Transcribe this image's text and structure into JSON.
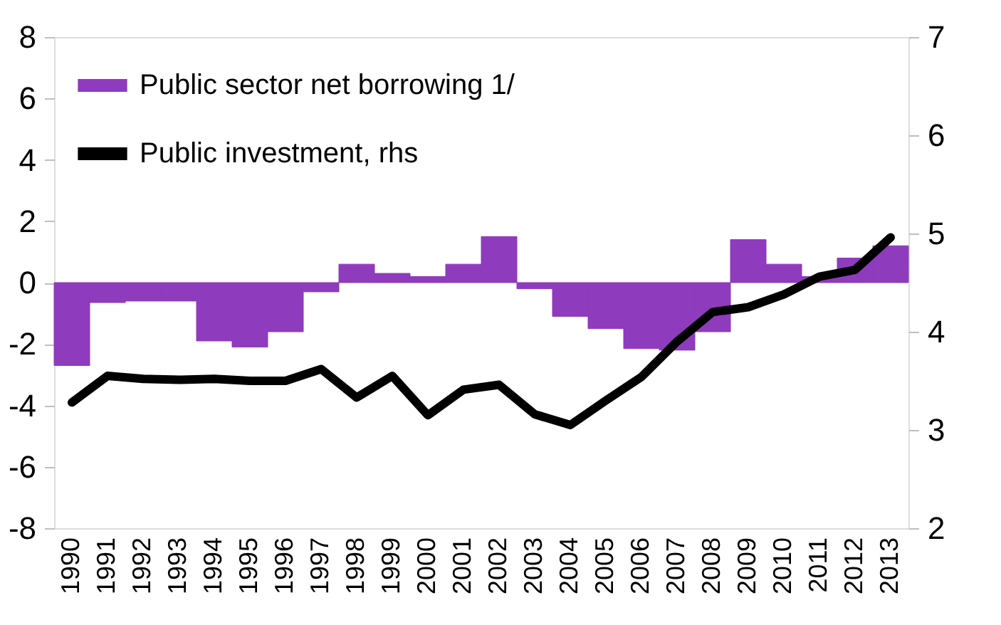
{
  "chart_data": {
    "type": "bar",
    "categories": [
      "1990",
      "1991",
      "1992",
      "1993",
      "1994",
      "1995",
      "1996",
      "1997",
      "1998",
      "1999",
      "2000",
      "2001",
      "2002",
      "2003",
      "2004",
      "2005",
      "2006",
      "2007",
      "2008",
      "2009",
      "2010",
      "2011",
      "2012",
      "2013"
    ],
    "series": [
      {
        "name": "Public sector net borrowing 1/",
        "color": "#8e3bbd",
        "values": [
          -2.7,
          -0.65,
          -0.6,
          -0.6,
          -1.9,
          -2.1,
          -1.6,
          -0.3,
          0.6,
          0.3,
          0.2,
          0.6,
          1.5,
          -0.2,
          -1.1,
          -1.5,
          -2.15,
          -2.2,
          -1.6,
          1.4,
          0.6,
          0.2,
          0.8,
          1.2
        ]
      },
      {
        "name": "Public investment, rhs",
        "color": "#000000",
        "type": "line",
        "axis": "y2",
        "values": [
          3.28,
          3.55,
          3.52,
          3.51,
          3.52,
          3.5,
          3.5,
          3.62,
          3.33,
          3.55,
          3.15,
          3.41,
          3.46,
          3.16,
          3.05,
          3.3,
          3.54,
          3.9,
          4.2,
          4.25,
          4.38,
          4.56,
          4.63,
          4.96
        ]
      }
    ],
    "ylim": [
      -8,
      8
    ],
    "yticks": [
      -8,
      -6,
      -4,
      -2,
      0,
      2,
      4,
      6,
      8
    ],
    "y2lim": [
      2,
      7
    ],
    "y2ticks": [
      2,
      3,
      4,
      5,
      6,
      7
    ],
    "legend": "top left",
    "grid": false
  }
}
